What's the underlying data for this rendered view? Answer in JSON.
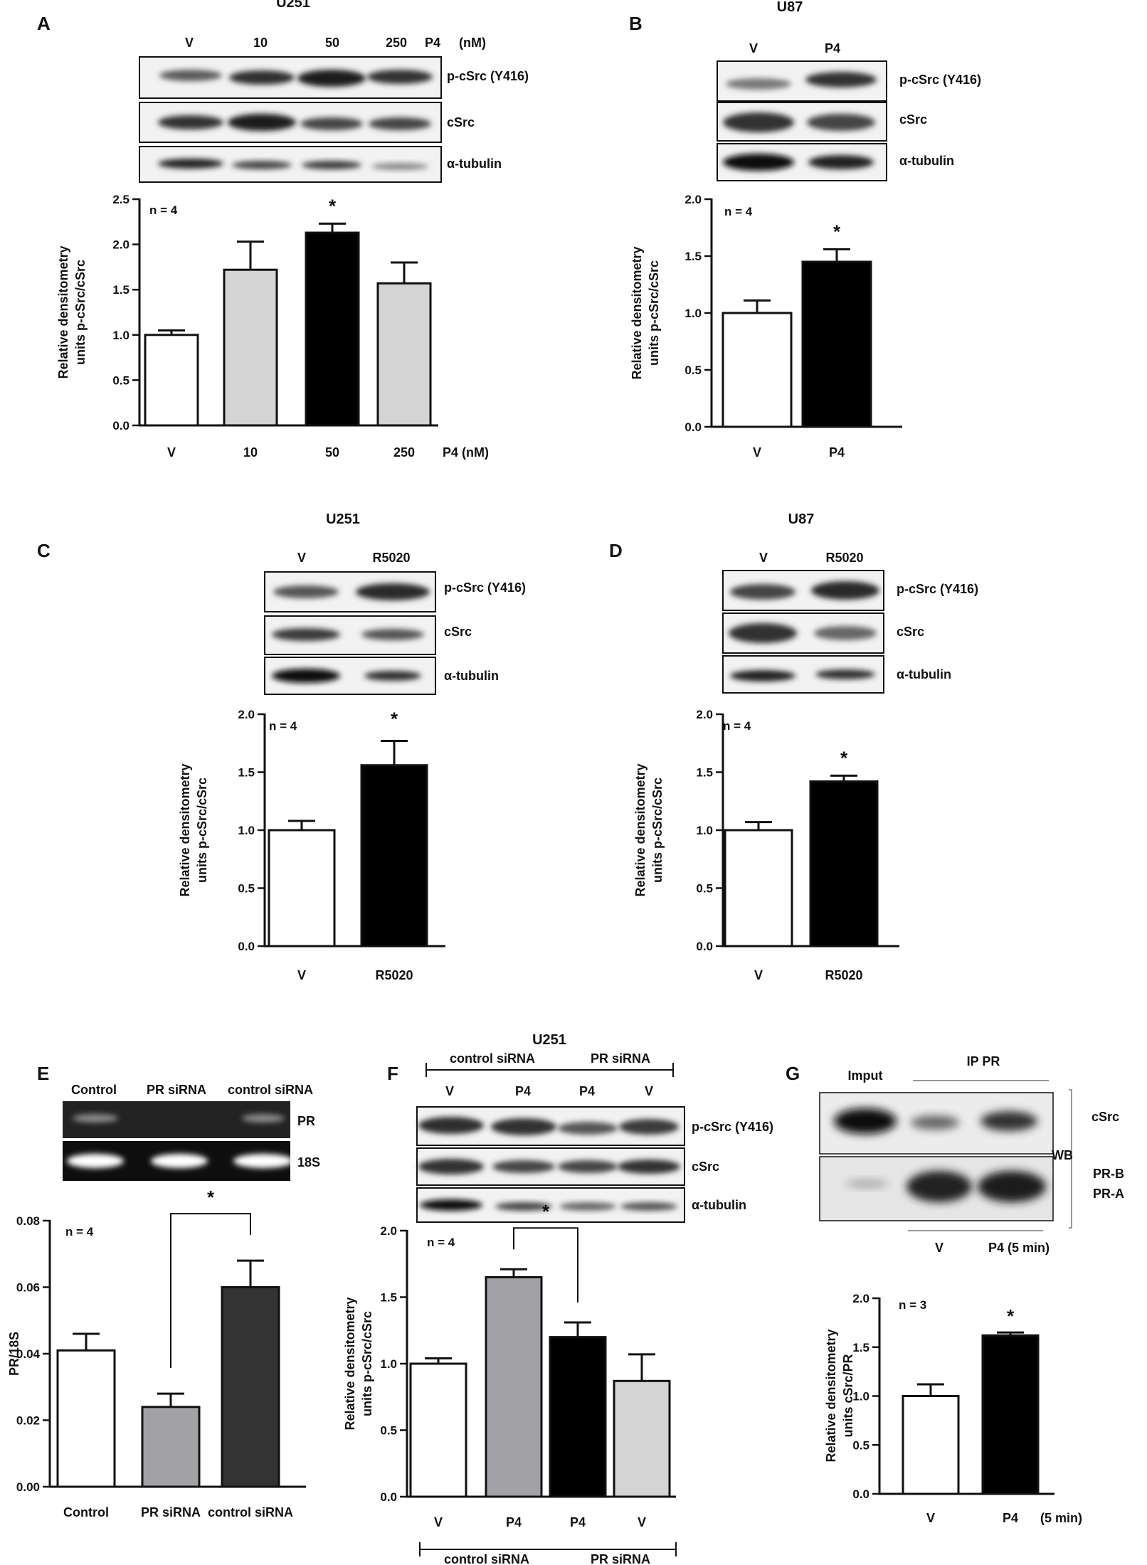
{
  "colors": {
    "axis": "#111111",
    "white_bar": "#ffffff",
    "light_gray_bar": "#d4d4d4",
    "mid_gray_bar": "#a1a1a6",
    "dark_bar": "#333333",
    "black_bar": "#000000"
  },
  "panels": {
    "A": {
      "label": "A",
      "cell_line": "U251",
      "lanes": [
        "V",
        "10",
        "50",
        "250",
        "P4",
        "(nM)"
      ],
      "blots": [
        "p-cSrc (Y416)",
        "cSrc",
        "α-tubulin"
      ]
    },
    "B": {
      "label": "B",
      "cell_line": "U87",
      "lanes": [
        "V",
        "P4"
      ],
      "blots": [
        "p-cSrc (Y416)",
        "cSrc",
        "α-tubulin"
      ]
    },
    "C": {
      "label": "C",
      "cell_line": "U251",
      "lanes": [
        "V",
        "R5020"
      ],
      "blots": [
        "p-cSrc (Y416)",
        "cSrc",
        "α-tubulin"
      ]
    },
    "D": {
      "label": "D",
      "cell_line": "U87",
      "lanes": [
        "V",
        "R5020"
      ],
      "blots": [
        "p-cSrc (Y416)",
        "cSrc",
        "α-tubulin"
      ]
    },
    "E": {
      "label": "E",
      "lanes": [
        "Control",
        "PR siRNA",
        "control siRNA"
      ],
      "gels": [
        "PR",
        "18S"
      ]
    },
    "F": {
      "label": "F",
      "cell_line": "U251",
      "groups": [
        "control siRNA",
        "PR siRNA"
      ],
      "lanes": [
        "V",
        "P4",
        "P4",
        "V"
      ],
      "blots": [
        "p-cSrc (Y416)",
        "cSrc",
        "α-tubulin"
      ],
      "bottom_groups": [
        "control siRNA",
        "PR siRNA"
      ]
    },
    "G": {
      "label": "G",
      "input_label": "Imput",
      "ip_label": "IP PR",
      "side_top": "cSrc",
      "wb_label": "WB",
      "side_bottom_1": "PR-B",
      "side_bottom_2": "PR-A",
      "lanes": [
        "V",
        "P4 (5 min)"
      ]
    }
  },
  "chart_data": [
    {
      "id": "A",
      "type": "bar",
      "categories": [
        "V",
        "10",
        "50",
        "250"
      ],
      "values": [
        1.0,
        1.72,
        2.13,
        1.57
      ],
      "errors": [
        0.05,
        0.31,
        0.1,
        0.23
      ],
      "significant": [
        false,
        false,
        true,
        false
      ],
      "fills": [
        "white_bar",
        "light_gray_bar",
        "black_bar",
        "light_gray_bar"
      ],
      "ylabel": [
        "Relative densitometry",
        "units p-cSrc/cSrc"
      ],
      "xunit_label": "P4  (nM)",
      "note": "n = 4",
      "ylim": [
        0,
        2.5
      ],
      "yticks": [
        "0.0",
        "0.5",
        "1.0",
        "1.5",
        "2.0",
        "2.5"
      ],
      "legend": "none",
      "grid": false
    },
    {
      "id": "B",
      "type": "bar",
      "categories": [
        "V",
        "P4"
      ],
      "values": [
        1.0,
        1.45
      ],
      "errors": [
        0.11,
        0.11
      ],
      "significant": [
        false,
        true
      ],
      "fills": [
        "white_bar",
        "black_bar"
      ],
      "ylabel": [
        "Relative densitometry",
        "units p-cSrc/cSrc"
      ],
      "note": "n = 4",
      "ylim": [
        0,
        2.0
      ],
      "yticks": [
        "0.0",
        "0.5",
        "1.0",
        "1.5",
        "2.0"
      ],
      "legend": "none",
      "grid": false
    },
    {
      "id": "C",
      "type": "bar",
      "categories": [
        "V",
        "R5020"
      ],
      "values": [
        1.0,
        1.56
      ],
      "errors": [
        0.08,
        0.21
      ],
      "significant": [
        false,
        true
      ],
      "fills": [
        "white_bar",
        "black_bar"
      ],
      "ylabel": [
        "Relative densitometry",
        "units p-cSrc/cSrc"
      ],
      "note": "n = 4",
      "ylim": [
        0,
        2.0
      ],
      "yticks": [
        "0.0",
        "0.5",
        "1.0",
        "1.5",
        "2.0"
      ],
      "legend": "none",
      "grid": false
    },
    {
      "id": "D",
      "type": "bar",
      "categories": [
        "V",
        "R5020"
      ],
      "values": [
        1.0,
        1.42
      ],
      "errors": [
        0.07,
        0.05
      ],
      "significant": [
        false,
        true
      ],
      "fills": [
        "white_bar",
        "black_bar"
      ],
      "ylabel": [
        "Relative densitometry",
        "units p-cSrc/cSrc"
      ],
      "note": "n = 4",
      "ylim": [
        0,
        2.0
      ],
      "yticks": [
        "0.0",
        "0.5",
        "1.0",
        "1.5",
        "2.0"
      ],
      "legend": "none",
      "grid": false
    },
    {
      "id": "E",
      "type": "bar",
      "categories": [
        "Control",
        "PR siRNA",
        "control siRNA"
      ],
      "values": [
        0.041,
        0.024,
        0.06
      ],
      "errors": [
        0.005,
        0.004,
        0.008
      ],
      "fills": [
        "white_bar",
        "mid_gray_bar",
        "dark_bar"
      ],
      "ylabel": [
        "PR/18S"
      ],
      "note": "n = 4",
      "bracket": {
        "from": 1,
        "to": 2,
        "label": "*"
      },
      "ylim": [
        0,
        0.08
      ],
      "yticks": [
        "0.00",
        "0.02",
        "0.04",
        "0.06",
        "0.08"
      ],
      "legend": "none",
      "grid": false
    },
    {
      "id": "F",
      "type": "bar",
      "categories": [
        "V",
        "P4",
        "P4",
        "V"
      ],
      "values": [
        1.0,
        1.65,
        1.2,
        0.87
      ],
      "errors": [
        0.04,
        0.06,
        0.11,
        0.2
      ],
      "fills": [
        "white_bar",
        "mid_gray_bar",
        "black_bar",
        "light_gray_bar"
      ],
      "ylabel": [
        "Relative densitometry",
        "units p-cSrc/cSrc"
      ],
      "note": "n = 4",
      "bracket": {
        "from": 1,
        "to": 2,
        "label": "*"
      },
      "ylim": [
        0,
        2.0
      ],
      "yticks": [
        "0.0",
        "0.5",
        "1.0",
        "1.5",
        "2.0"
      ],
      "legend": "none",
      "grid": false
    },
    {
      "id": "G",
      "type": "bar",
      "categories": [
        "V",
        "P4"
      ],
      "values": [
        1.0,
        1.62
      ],
      "errors": [
        0.12,
        0.03
      ],
      "significant": [
        false,
        true
      ],
      "fills": [
        "white_bar",
        "black_bar"
      ],
      "ylabel": [
        "Relative densitometry",
        "units cSrc/PR"
      ],
      "xunit_label": "(5 min)",
      "note": "n = 3",
      "ylim": [
        0,
        2.0
      ],
      "yticks": [
        "0.0",
        "0.5",
        "1.0",
        "1.5",
        "2.0"
      ],
      "legend": "none",
      "grid": false
    }
  ]
}
